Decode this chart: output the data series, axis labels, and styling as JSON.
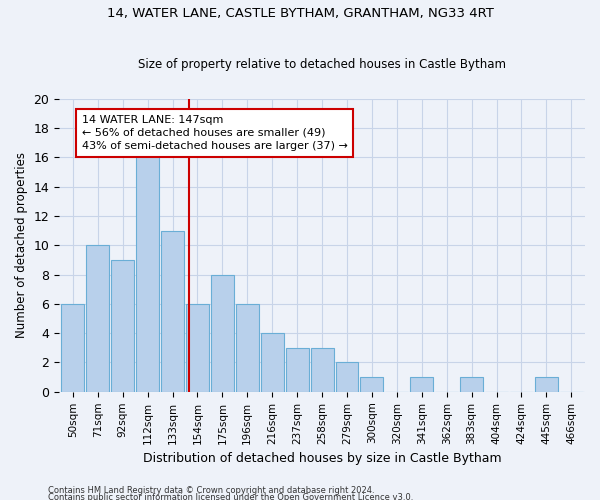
{
  "title1": "14, WATER LANE, CASTLE BYTHAM, GRANTHAM, NG33 4RT",
  "title2": "Size of property relative to detached houses in Castle Bytham",
  "xlabel": "Distribution of detached houses by size in Castle Bytham",
  "ylabel": "Number of detached properties",
  "bar_labels": [
    "50sqm",
    "71sqm",
    "92sqm",
    "112sqm",
    "133sqm",
    "154sqm",
    "175sqm",
    "196sqm",
    "216sqm",
    "237sqm",
    "258sqm",
    "279sqm",
    "300sqm",
    "320sqm",
    "341sqm",
    "362sqm",
    "383sqm",
    "404sqm",
    "424sqm",
    "445sqm",
    "466sqm"
  ],
  "bar_values": [
    6,
    10,
    9,
    17,
    11,
    6,
    8,
    6,
    4,
    3,
    3,
    2,
    1,
    0,
    1,
    0,
    1,
    0,
    0,
    1,
    0
  ],
  "bar_color": "#b8d0eb",
  "bar_edge_color": "#6aaed6",
  "grid_color": "#c8d4e8",
  "background_color": "#eef2f9",
  "vline_color": "#cc0000",
  "annotation_line1": "14 WATER LANE: 147sqm",
  "annotation_line2": "← 56% of detached houses are smaller (49)",
  "annotation_line3": "43% of semi-detached houses are larger (37) →",
  "annotation_box_color": "#ffffff",
  "annotation_border_color": "#cc0000",
  "ylim": [
    0,
    20
  ],
  "yticks": [
    0,
    2,
    4,
    6,
    8,
    10,
    12,
    14,
    16,
    18,
    20
  ],
  "footnote1": "Contains HM Land Registry data © Crown copyright and database right 2024.",
  "footnote2": "Contains public sector information licensed under the Open Government Licence v3.0."
}
